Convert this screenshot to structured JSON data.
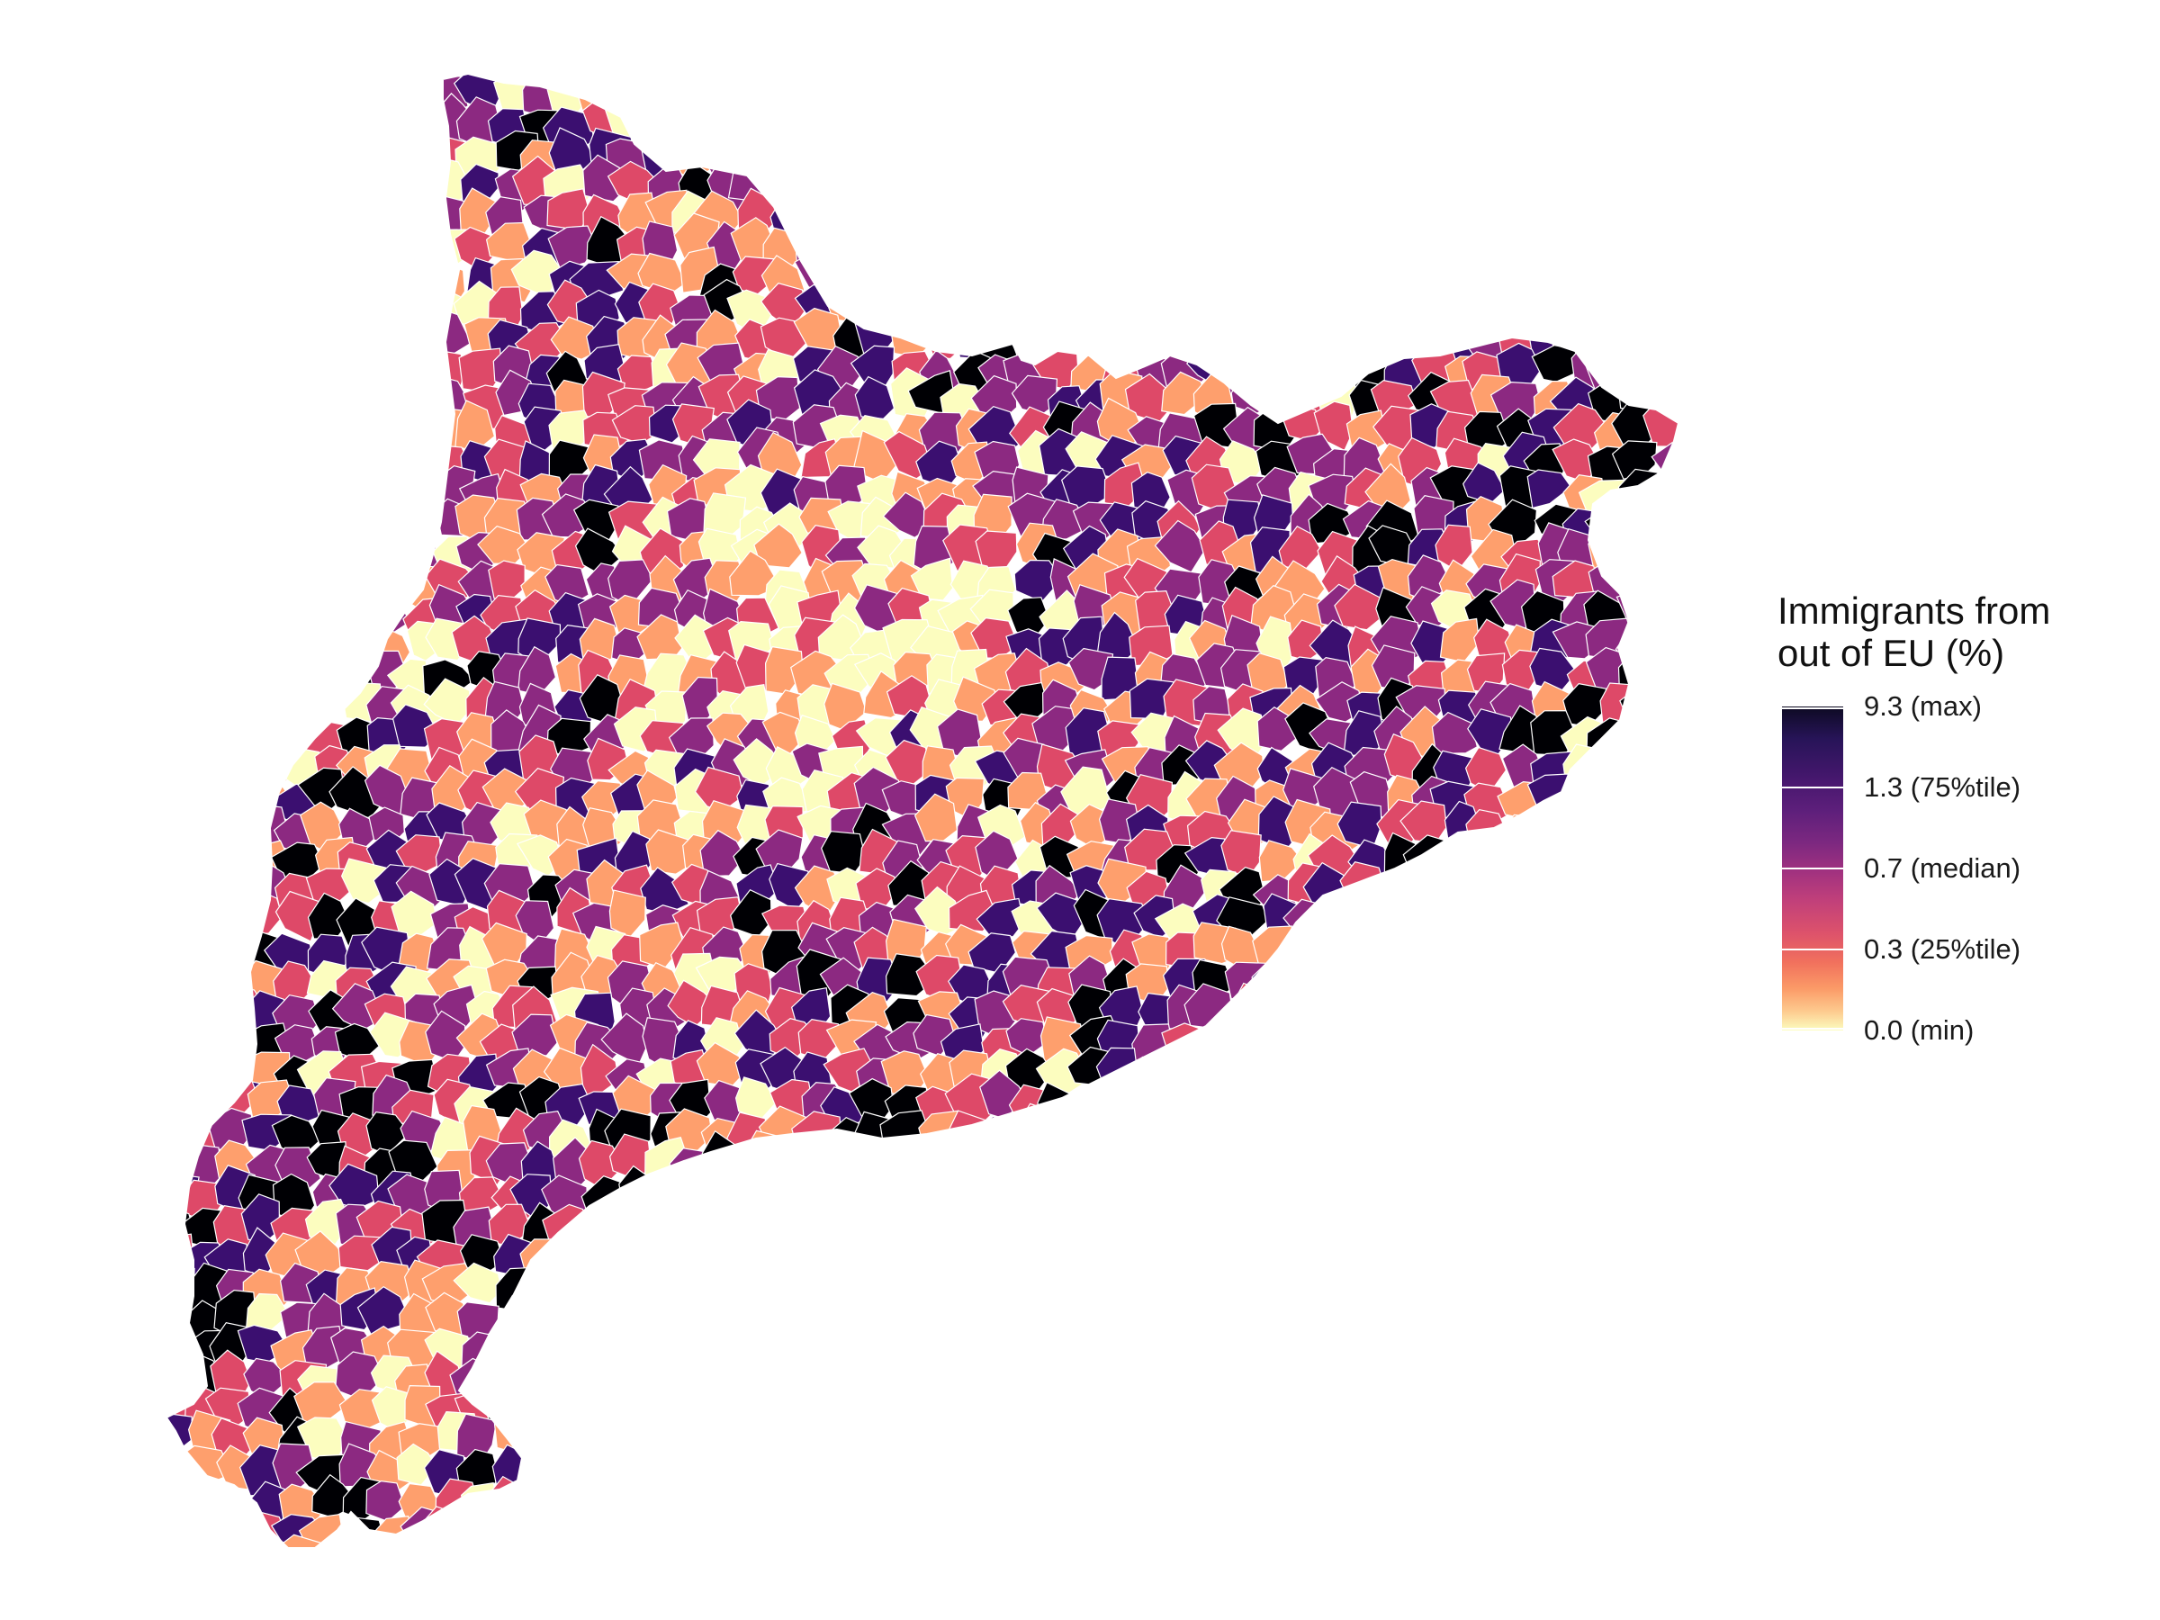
{
  "legend": {
    "title_line1": "Immigrants from",
    "title_line2": "out of EU (%)",
    "breaks": [
      {
        "label": "9.3 (max)",
        "position": 0.0
      },
      {
        "label": "1.3 (75%tile)",
        "position": 0.25
      },
      {
        "label": "0.7 (median)",
        "position": 0.5
      },
      {
        "label": "0.3 (25%tile)",
        "position": 0.75
      },
      {
        "label": "0.0 (min)",
        "position": 1.0
      }
    ]
  },
  "palette": {
    "outside_eu_max": "#000004",
    "p75": "#3b0f70",
    "median": "#8c2981",
    "p25": "#de4968",
    "low": "#fe9f6d",
    "min": "#fcfdbf",
    "border": "#ffffff"
  },
  "map": {
    "region_description_hidden": true
  }
}
